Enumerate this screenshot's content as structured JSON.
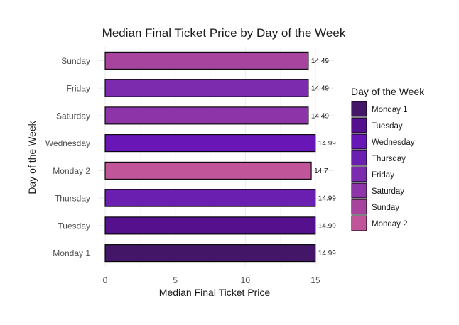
{
  "chart_data": {
    "type": "bar",
    "orientation": "horizontal",
    "title": "Median Final Ticket Price by Day of the Week",
    "xlabel": "Median Final Ticket Price",
    "ylabel": "Day of the Week",
    "xlim": [
      0,
      15.5
    ],
    "x_ticks": [
      0,
      5,
      10,
      15
    ],
    "grid": true,
    "legend_placement": "right",
    "categories": [
      "Sunday",
      "Friday",
      "Saturday",
      "Wednesday",
      "Monday 2",
      "Thursday",
      "Tuesday",
      "Monday 1"
    ],
    "values": [
      14.49,
      14.49,
      14.49,
      14.99,
      14.7,
      14.99,
      14.99,
      14.99
    ],
    "data_labels": [
      "14.49",
      "14.49",
      "14.49",
      "14.99",
      "14.7",
      "14.99",
      "14.99",
      "14.99"
    ],
    "colors": [
      "#A7459E",
      "#7D2BAE",
      "#8D35A8",
      "#6816B5",
      "#C1559A",
      "#6A1FB0",
      "#55108E",
      "#441667"
    ],
    "legend": {
      "title": "Day of the Week",
      "entries": [
        {
          "label": "Monday 1",
          "color": "#441667"
        },
        {
          "label": "Tuesday",
          "color": "#55108E"
        },
        {
          "label": "Wednesday",
          "color": "#6816B5"
        },
        {
          "label": "Thursday",
          "color": "#6A1FB0"
        },
        {
          "label": "Friday",
          "color": "#7D2BAE"
        },
        {
          "label": "Saturday",
          "color": "#8D35A8"
        },
        {
          "label": "Sunday",
          "color": "#A7459E"
        },
        {
          "label": "Monday 2",
          "color": "#C1559A"
        }
      ]
    }
  }
}
